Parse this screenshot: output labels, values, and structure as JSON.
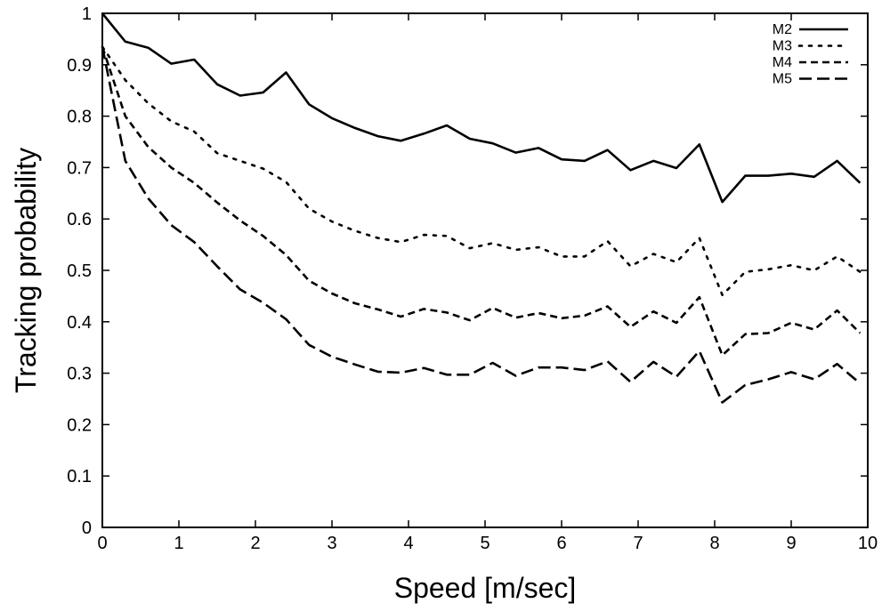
{
  "chart_data": {
    "type": "line",
    "title": "",
    "xlabel": "Speed [m/sec]",
    "ylabel": "Tracking probability",
    "xlim": [
      0,
      10
    ],
    "ylim": [
      0,
      1
    ],
    "xticks": [
      0,
      1,
      2,
      3,
      4,
      5,
      6,
      7,
      8,
      9,
      10
    ],
    "xtick_labels": [
      "0",
      "1",
      "2",
      "3",
      "4",
      "5",
      "6",
      "7",
      "8",
      "9",
      "10"
    ],
    "yticks": [
      0,
      0.1,
      0.2,
      0.3,
      0.4,
      0.5,
      0.6,
      0.7,
      0.8,
      0.9,
      1
    ],
    "ytick_labels": [
      "0",
      "0.1",
      "0.2",
      "0.3",
      "0.4",
      "0.5",
      "0.6",
      "0.7",
      "0.8",
      "0.9",
      "1"
    ],
    "grid": false,
    "legend_position": "top-right",
    "x": [
      0,
      0.3,
      0.6,
      0.9,
      1.2,
      1.5,
      1.8,
      2.1,
      2.4,
      2.7,
      3.0,
      3.3,
      3.6,
      3.9,
      4.2,
      4.5,
      4.8,
      5.1,
      5.4,
      5.7,
      6.0,
      6.3,
      6.6,
      6.9,
      7.2,
      7.5,
      7.8,
      8.1,
      8.4,
      8.7,
      9.0,
      9.3,
      9.6,
      9.9
    ],
    "series": [
      {
        "name": "M2",
        "style": "solid",
        "values": [
          1.0,
          0.945,
          0.933,
          0.902,
          0.91,
          0.862,
          0.84,
          0.846,
          0.885,
          0.823,
          0.796,
          0.777,
          0.761,
          0.752,
          0.766,
          0.782,
          0.756,
          0.747,
          0.729,
          0.738,
          0.716,
          0.713,
          0.734,
          0.695,
          0.713,
          0.699,
          0.745,
          0.633,
          0.684,
          0.684,
          0.688,
          0.682,
          0.713,
          0.67
        ]
      },
      {
        "name": "M3",
        "style": "dotted",
        "values": [
          0.935,
          0.87,
          0.825,
          0.79,
          0.77,
          0.728,
          0.713,
          0.698,
          0.672,
          0.62,
          0.595,
          0.577,
          0.563,
          0.555,
          0.569,
          0.567,
          0.543,
          0.553,
          0.54,
          0.545,
          0.527,
          0.527,
          0.557,
          0.508,
          0.532,
          0.516,
          0.563,
          0.452,
          0.497,
          0.502,
          0.51,
          0.5,
          0.527,
          0.497
        ]
      },
      {
        "name": "M4",
        "style": "dashed",
        "values": [
          0.935,
          0.8,
          0.74,
          0.7,
          0.67,
          0.632,
          0.597,
          0.567,
          0.53,
          0.48,
          0.455,
          0.436,
          0.424,
          0.41,
          0.425,
          0.418,
          0.403,
          0.427,
          0.408,
          0.417,
          0.407,
          0.412,
          0.43,
          0.39,
          0.42,
          0.398,
          0.448,
          0.335,
          0.376,
          0.378,
          0.398,
          0.385,
          0.422,
          0.378
        ]
      },
      {
        "name": "M5",
        "style": "longdash",
        "values": [
          0.935,
          0.713,
          0.64,
          0.588,
          0.555,
          0.508,
          0.463,
          0.437,
          0.405,
          0.355,
          0.332,
          0.317,
          0.303,
          0.301,
          0.31,
          0.297,
          0.297,
          0.32,
          0.295,
          0.311,
          0.311,
          0.306,
          0.323,
          0.283,
          0.322,
          0.293,
          0.343,
          0.243,
          0.277,
          0.288,
          0.302,
          0.288,
          0.318,
          0.28
        ]
      }
    ]
  }
}
